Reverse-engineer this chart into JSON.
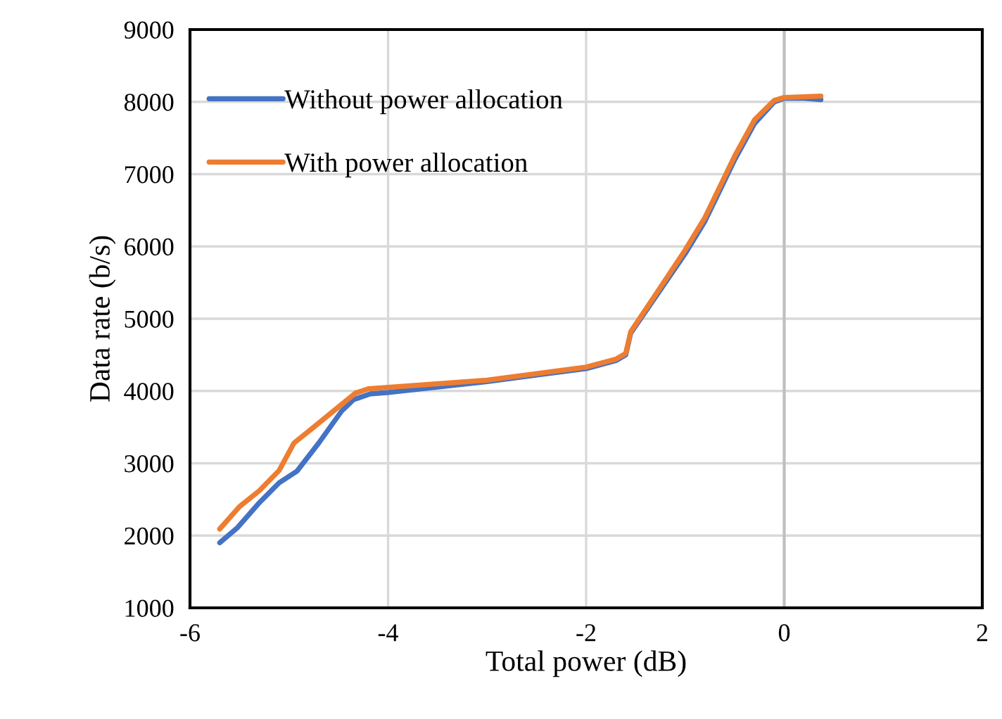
{
  "chart_data": {
    "type": "line",
    "xlabel": "Total power (dB)",
    "ylabel": "Data rate (b/s)",
    "xlim": [
      -6,
      2
    ],
    "xticks": [
      -6,
      -4,
      -2,
      0,
      2
    ],
    "ylim": [
      1000,
      9000
    ],
    "yticks": [
      1000,
      2000,
      3000,
      4000,
      5000,
      6000,
      7000,
      8000,
      9000
    ],
    "grid": true,
    "legend": "top left",
    "marker": "none",
    "line_style": "solid",
    "ref_lines": [
      {
        "axis": "x",
        "value": 0,
        "color": "#bfbfbf"
      }
    ],
    "series": [
      {
        "name": "Without power allocation",
        "color": "#4472c4",
        "x": [
          -5.7,
          -5.52,
          -5.31,
          -5.1,
          -4.92,
          -4.7,
          -4.47,
          -4.35,
          -4.18,
          -4.0,
          -3,
          -2,
          -1.7,
          -1.6,
          -1.55,
          -1.3,
          -1,
          -0.8,
          -0.5,
          -0.3,
          -0.1,
          0,
          0.2,
          0.37
        ],
        "values": [
          1900,
          2110,
          2440,
          2730,
          2890,
          3280,
          3720,
          3880,
          3960,
          3980,
          4130,
          4310,
          4420,
          4500,
          4800,
          5300,
          5900,
          6350,
          7200,
          7700,
          8000,
          8050,
          8050,
          8030
        ]
      },
      {
        "name": "With power allocation",
        "color": "#ed7d31",
        "x": [
          -5.7,
          -5.5,
          -5.3,
          -5.1,
          -4.95,
          -4.75,
          -4.5,
          -4.33,
          -4.2,
          -4,
          -3,
          -2,
          -1.7,
          -1.6,
          -1.55,
          -1.3,
          -1,
          -0.8,
          -0.5,
          -0.3,
          -0.1,
          0,
          0.2,
          0.37
        ],
        "values": [
          2090,
          2400,
          2620,
          2900,
          3280,
          3500,
          3780,
          3970,
          4030,
          4050,
          4150,
          4330,
          4440,
          4520,
          4820,
          5330,
          5950,
          6400,
          7250,
          7750,
          8020,
          8060,
          8070,
          8080
        ]
      }
    ]
  }
}
